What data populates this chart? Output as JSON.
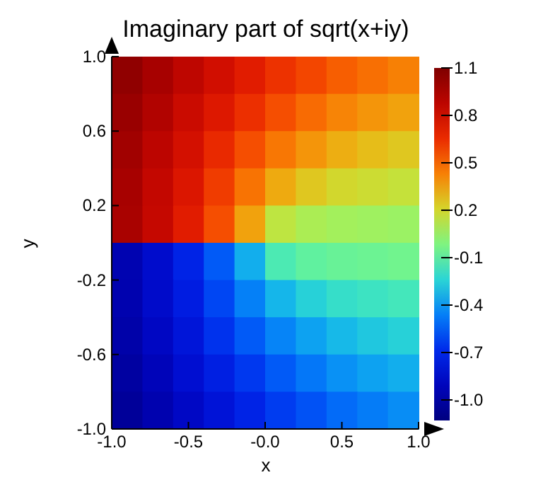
{
  "chart_data": {
    "type": "heatmap",
    "title": "Imaginary part of sqrt(x+iy)",
    "xlabel": "x",
    "ylabel": "y",
    "x": [
      -0.9,
      -0.7,
      -0.5,
      -0.3,
      -0.1,
      0.1,
      0.3,
      0.5,
      0.7,
      0.9
    ],
    "y": [
      0.9,
      0.7,
      0.5,
      0.3,
      0.1,
      -0.1,
      -0.3,
      -0.5,
      -0.7,
      -0.9
    ],
    "cells": [
      [
        1.04,
        0.96,
        0.87,
        0.79,
        0.71,
        0.63,
        0.57,
        0.51,
        0.47,
        0.43
      ],
      [
        1.01,
        0.92,
        0.82,
        0.73,
        0.64,
        0.55,
        0.48,
        0.42,
        0.38,
        0.35
      ],
      [
        0.98,
        0.88,
        0.78,
        0.66,
        0.55,
        0.45,
        0.38,
        0.32,
        0.28,
        0.25
      ],
      [
        0.96,
        0.85,
        0.74,
        0.6,
        0.46,
        0.33,
        0.25,
        0.2,
        0.18,
        0.16
      ],
      [
        0.95,
        0.84,
        0.71,
        0.55,
        0.35,
        0.14,
        0.09,
        0.07,
        0.06,
        0.05
      ],
      [
        -0.95,
        -0.84,
        -0.71,
        -0.55,
        -0.35,
        -0.14,
        -0.09,
        -0.07,
        -0.06,
        -0.05
      ],
      [
        -0.96,
        -0.85,
        -0.74,
        -0.6,
        -0.46,
        -0.33,
        -0.25,
        -0.2,
        -0.18,
        -0.16
      ],
      [
        -0.98,
        -0.88,
        -0.78,
        -0.66,
        -0.55,
        -0.45,
        -0.38,
        -0.32,
        -0.28,
        -0.25
      ],
      [
        -1.01,
        -0.92,
        -0.82,
        -0.73,
        -0.64,
        -0.55,
        -0.48,
        -0.42,
        -0.38,
        -0.35
      ],
      [
        -1.04,
        -0.96,
        -0.87,
        -0.79,
        -0.71,
        -0.63,
        -0.57,
        -0.51,
        -0.47,
        -0.43
      ]
    ],
    "xlim": [
      -1,
      1
    ],
    "ylim": [
      -1,
      1
    ],
    "xticks": [
      {
        "value": -1,
        "label": "-1.0"
      },
      {
        "value": -0.5,
        "label": "-0.5"
      },
      {
        "value": 0,
        "label": "-0.0"
      },
      {
        "value": 0.5,
        "label": "0.5"
      },
      {
        "value": 1,
        "label": "1.0"
      }
    ],
    "yticks": [
      {
        "value": -1,
        "label": "-1.0"
      },
      {
        "value": -0.6,
        "label": "-0.6"
      },
      {
        "value": -0.2,
        "label": "-0.2"
      },
      {
        "value": 0.2,
        "label": "0.2"
      },
      {
        "value": 0.6,
        "label": "0.6"
      },
      {
        "value": 1,
        "label": "1.0"
      }
    ],
    "clim": [
      -1.13,
      1.1
    ],
    "cticks": [
      1.1,
      0.8,
      0.5,
      0.2,
      -0.1,
      -0.4,
      -0.7,
      {
        "value": -1,
        "label": "-1.0"
      }
    ]
  }
}
